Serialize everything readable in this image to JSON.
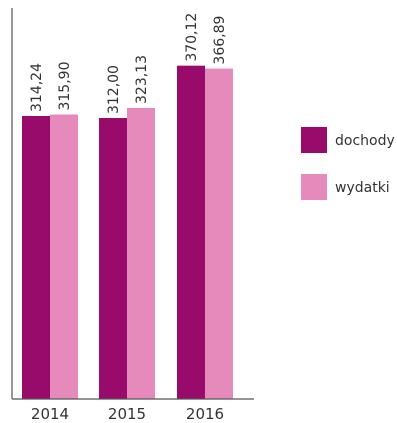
{
  "chart_data": {
    "type": "bar",
    "categories": [
      "2014",
      "2015",
      "2016"
    ],
    "series": [
      {
        "name": "dochody",
        "values": [
          314.24,
          312.0,
          370.12
        ],
        "labels": [
          "314,24",
          "312,00",
          "370,12"
        ],
        "color": "#980b6a"
      },
      {
        "name": "wydatki",
        "values": [
          315.9,
          323.13,
          366.89
        ],
        "labels": [
          "315,90",
          "323,13",
          "366,89"
        ],
        "color": "#e689bb"
      }
    ],
    "ylim": [
      0,
      400
    ],
    "grid": false,
    "legend_position": "right",
    "axis_color": "#555555"
  }
}
